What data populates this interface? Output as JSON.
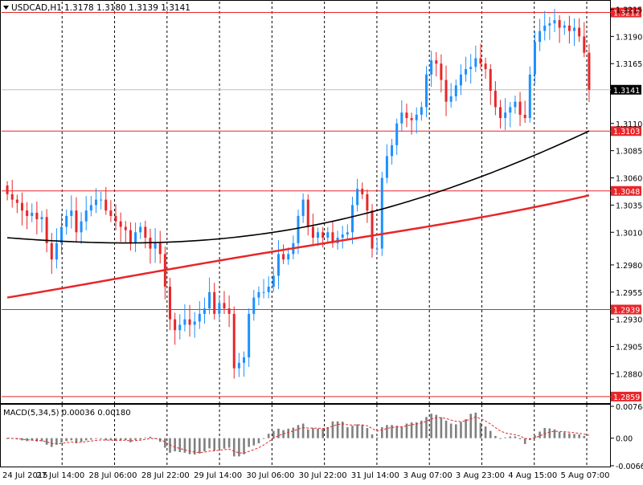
{
  "header": {
    "symbol": "USDCAD,H1",
    "ohlc": "1.3178 1.3180 1.3139 1.3141"
  },
  "colors": {
    "background": "#ffffff",
    "grid": "#000000",
    "bull_candle": "#1e90ff",
    "bear_candle": "#e8262a",
    "level_line": "#e8262a",
    "ma_slow": "#e8262a",
    "ma_fast": "#000000",
    "macd_hist": "#808080",
    "macd_signal": "#e8262a",
    "price_tag": "#000000"
  },
  "chart_data": [
    {
      "type": "candlestick",
      "title": "USDCAD,H1",
      "price_axis": {
        "ylim": [
          1.2853,
          1.3222
        ],
        "ticks": [
          "1.3215",
          "1.3190",
          "1.3165",
          "1.3110",
          "1.3085",
          "1.3060",
          "1.3035",
          "1.3010",
          "1.2980",
          "1.2955",
          "1.2930",
          "1.2905",
          "1.2880"
        ]
      },
      "time_axis": {
        "ticks": [
          "24 Jul 2015",
          "27 Jul 14:00",
          "28 Jul 06:00",
          "28 Jul 22:00",
          "29 Jul 14:00",
          "30 Jul 06:00",
          "30 Jul 22:00",
          "31 Jul 14:00",
          "3 Aug 07:00",
          "3 Aug 23:00",
          "4 Aug 15:00",
          "5 Aug 07:00"
        ]
      },
      "levels": [
        "1.3212",
        "1.3103",
        "1.3048",
        "1.2939",
        "1.2859"
      ],
      "current_price": "1.3141",
      "series_close": [
        1.3045,
        1.304,
        1.3037,
        1.303,
        1.3025,
        1.3028,
        1.3022,
        1.3024,
        1.3,
        1.2985,
        1.3,
        1.3015,
        1.3025,
        1.303,
        1.301,
        1.302,
        1.303,
        1.3035,
        1.304,
        1.304,
        1.303,
        1.3025,
        1.302,
        1.3015,
        1.3012,
        1.3,
        1.301,
        1.3015,
        1.3005,
        1.2995,
        1.3,
        1.299,
        1.296,
        1.293,
        1.292,
        1.2925,
        1.293,
        1.2925,
        1.2928,
        1.2935,
        1.294,
        1.2955,
        1.2935,
        1.2945,
        1.294,
        1.2935,
        1.2885,
        1.289,
        1.2895,
        1.2935,
        1.295,
        1.2955,
        1.2955,
        1.296,
        1.297,
        1.299,
        1.2985,
        1.299,
        1.3,
        1.3025,
        1.304,
        1.3015,
        1.3005,
        1.301,
        1.3005,
        1.301,
        1.3,
        1.3005,
        1.3008,
        1.301,
        1.3035,
        1.305,
        1.3045,
        1.303,
        1.2995,
        1.2995,
        1.306,
        1.308,
        1.309,
        1.311,
        1.312,
        1.3115,
        1.3113,
        1.3118,
        1.3125,
        1.3155,
        1.3168,
        1.3165,
        1.315,
        1.313,
        1.3135,
        1.3145,
        1.3155,
        1.316,
        1.3162,
        1.317,
        1.3165,
        1.316,
        1.314,
        1.3125,
        1.3115,
        1.312,
        1.3125,
        1.313,
        1.3118,
        1.3115,
        1.3155,
        1.3185,
        1.3195,
        1.32,
        1.3202,
        1.3205,
        1.3198,
        1.32,
        1.3195,
        1.3198,
        1.319,
        1.3175,
        1.3141
      ],
      "series": [
        {
          "values": "moving average, slow (red line)",
          "start": 1.295,
          "end": 1.305
        },
        {
          "values": "moving average, fast (black line)",
          "start": 1.3005,
          "end": 1.31
        }
      ]
    },
    {
      "type": "bar",
      "title": "MACD(5,34,5) 0.00036 0.00180",
      "ylim": [
        -0.00661,
        0.00764
      ],
      "ticks": [
        "0.00764",
        "0.00",
        "-0.00661"
      ]
    }
  ]
}
